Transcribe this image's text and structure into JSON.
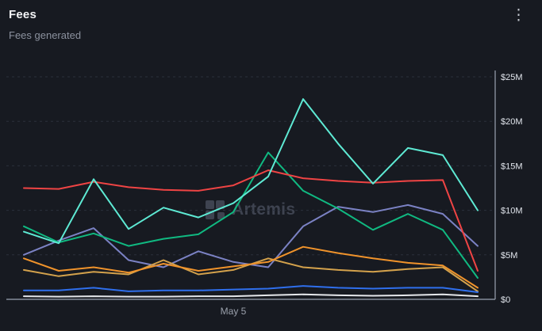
{
  "header": {
    "title": "Fees",
    "subtitle": "Fees generated",
    "menu_icon": "kebab-menu-icon"
  },
  "watermark": {
    "text": "Artemis"
  },
  "chart_data": {
    "type": "line",
    "title": "Fees",
    "subtitle": "Fees generated",
    "values_unit": "USD millions",
    "ylim": [
      0,
      25
    ],
    "y_ticks": [
      "$0",
      "$5M",
      "$10M",
      "$15M",
      "$20M",
      "$25M"
    ],
    "grid": "dashed horizontal, axis on right and bottom",
    "legend": "none visible",
    "x_tick": {
      "label": "May 5",
      "index": 6
    },
    "series": [
      {
        "name": "purple",
        "color": "#7b82c4",
        "values": [
          5.0,
          6.6,
          8.0,
          4.4,
          3.6,
          5.4,
          4.2,
          3.6,
          8.2,
          10.4,
          9.8,
          10.6,
          9.6,
          6.0
        ]
      },
      {
        "name": "amber",
        "color": "#d4a24c",
        "values": [
          3.3,
          2.6,
          3.1,
          2.8,
          4.4,
          2.8,
          3.3,
          4.6,
          3.6,
          3.3,
          3.1,
          3.4,
          3.6,
          0.9
        ]
      },
      {
        "name": "orange",
        "color": "#f0932b",
        "values": [
          4.6,
          3.2,
          3.6,
          3.0,
          4.0,
          3.2,
          3.7,
          4.2,
          5.9,
          5.2,
          4.6,
          4.1,
          3.8,
          1.3
        ]
      },
      {
        "name": "blue",
        "color": "#2f6fed",
        "values": [
          1.0,
          1.0,
          1.3,
          0.9,
          1.0,
          1.0,
          1.1,
          1.2,
          1.5,
          1.3,
          1.2,
          1.3,
          1.3,
          0.8
        ]
      },
      {
        "name": "white",
        "color": "#e5e7eb",
        "values": [
          0.35,
          0.3,
          0.35,
          0.3,
          0.3,
          0.35,
          0.35,
          0.45,
          0.55,
          0.45,
          0.4,
          0.45,
          0.55,
          0.35
        ]
      },
      {
        "name": "green",
        "color": "#10b981",
        "values": [
          8.2,
          6.4,
          7.4,
          6.0,
          6.8,
          7.3,
          9.8,
          16.5,
          12.2,
          10.2,
          7.8,
          9.6,
          7.8,
          2.4
        ]
      },
      {
        "name": "red",
        "color": "#ef4444",
        "values": [
          12.5,
          12.4,
          13.2,
          12.6,
          12.3,
          12.2,
          12.8,
          14.5,
          13.6,
          13.3,
          13.1,
          13.3,
          13.4,
          3.2
        ]
      },
      {
        "name": "teal",
        "color": "#5eead4",
        "values": [
          7.6,
          6.3,
          13.5,
          7.9,
          10.3,
          9.2,
          10.8,
          13.8,
          22.5,
          17.5,
          13.0,
          17.0,
          16.2,
          10.0
        ]
      }
    ]
  }
}
